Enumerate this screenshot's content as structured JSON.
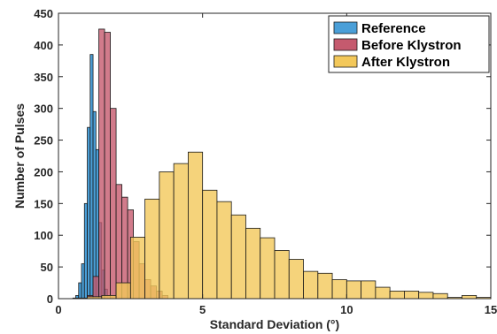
{
  "chart_data": {
    "type": "histogram",
    "xlabel": "Standard Deviation (°)",
    "ylabel": "Number of Pulses",
    "xlim": [
      0,
      15
    ],
    "ylim": [
      0,
      450
    ],
    "x_ticks": [
      "0",
      "5",
      "10",
      "15"
    ],
    "y_ticks": [
      "0",
      "50",
      "100",
      "150",
      "200",
      "250",
      "300",
      "350",
      "400",
      "450"
    ],
    "grid": false,
    "legend_position": "top-right",
    "series": [
      {
        "name": "Reference",
        "color": "#4a9fd8",
        "bin_width": 0.1,
        "bin_starts": [
          0.6,
          0.7,
          0.8,
          0.9,
          1.0,
          1.1,
          1.2,
          1.3,
          1.4,
          1.5,
          1.6,
          1.7,
          1.8
        ],
        "values": [
          5,
          25,
          55,
          150,
          270,
          385,
          295,
          235,
          120,
          45,
          15,
          5,
          2
        ]
      },
      {
        "name": "Before Klystron",
        "color": "#c55a6e",
        "bin_width": 0.2,
        "bin_starts": [
          1.0,
          1.2,
          1.4,
          1.6,
          1.8,
          2.0,
          2.2,
          2.4,
          2.6,
          2.8,
          3.0,
          3.2,
          3.4,
          3.6
        ],
        "values": [
          5,
          35,
          425,
          420,
          300,
          180,
          160,
          140,
          90,
          55,
          30,
          20,
          12,
          5
        ]
      },
      {
        "name": "After Klystron",
        "color": "#f3c85a",
        "bin_width": 0.5,
        "bin_starts": [
          0.5,
          1.0,
          1.5,
          2.0,
          2.5,
          3.0,
          3.5,
          4.0,
          4.5,
          5.0,
          5.5,
          6.0,
          6.5,
          7.0,
          7.5,
          8.0,
          8.5,
          9.0,
          9.5,
          10.0,
          10.5,
          11.0,
          11.5,
          12.0,
          12.5,
          13.0,
          13.5,
          14.0,
          14.5,
          15.0
        ],
        "values": [
          1,
          3,
          5,
          25,
          97,
          157,
          200,
          213,
          231,
          171,
          153,
          132,
          111,
          96,
          76,
          62,
          43,
          40,
          30,
          28,
          28,
          18,
          12,
          12,
          10,
          8,
          2,
          5,
          2,
          1
        ]
      }
    ]
  }
}
